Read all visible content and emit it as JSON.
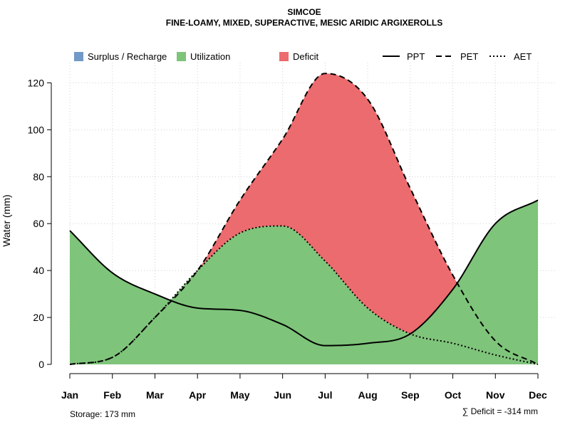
{
  "chart_data": {
    "type": "area",
    "title": "SIMCOE",
    "subtitle": "FINE-LOAMY, MIXED, SUPERACTIVE, MESIC ARIDIC ARGIXEROLLS",
    "ylabel": "Water (mm)",
    "xlabel": "",
    "ylim": [
      0,
      128
    ],
    "yticks": [
      0,
      20,
      40,
      60,
      80,
      100,
      120
    ],
    "categories": [
      "Jan",
      "Feb",
      "Mar",
      "Apr",
      "May",
      "Jun",
      "Jul",
      "Aug",
      "Sep",
      "Oct",
      "Nov",
      "Dec"
    ],
    "grid": true,
    "legend_position": "top",
    "colors": {
      "surplus": "#7399c6",
      "utilization": "#7ec47a",
      "deficit": "#ec6b6e",
      "line": "#000000"
    },
    "legend": [
      {
        "label": "Surplus / Recharge",
        "kind": "fill",
        "key": "surplus"
      },
      {
        "label": "Utilization",
        "kind": "fill",
        "key": "utilization"
      },
      {
        "label": "Deficit",
        "kind": "fill",
        "key": "deficit"
      },
      {
        "label": "PPT",
        "kind": "line",
        "dash": "solid"
      },
      {
        "label": "PET",
        "kind": "line",
        "dash": "dashed"
      },
      {
        "label": "AET",
        "kind": "line",
        "dash": "dotted"
      }
    ],
    "series": [
      {
        "name": "PPT",
        "values": [
          57,
          39,
          30,
          24,
          23,
          17,
          8,
          9,
          13,
          32,
          60,
          70
        ]
      },
      {
        "name": "PET",
        "values": [
          0,
          3,
          20,
          40,
          70,
          96,
          124,
          113,
          75,
          38,
          10,
          0
        ]
      },
      {
        "name": "AET",
        "values": [
          0,
          3,
          20,
          40,
          56,
          59,
          44,
          24,
          13,
          9,
          4,
          0
        ]
      }
    ]
  },
  "footer": {
    "storage": "Storage: 173 mm",
    "deficit": "∑ Deficit = -314 mm"
  }
}
